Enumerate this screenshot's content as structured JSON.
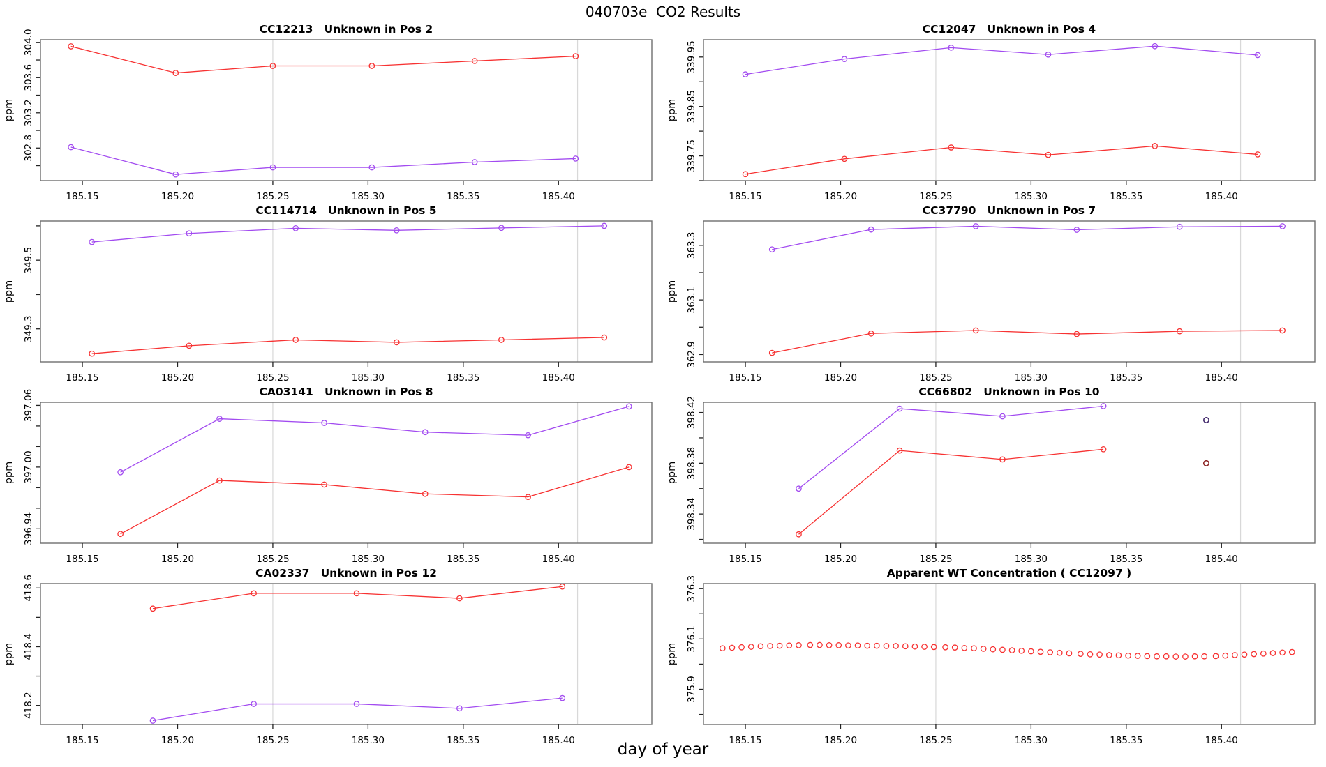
{
  "figure": {
    "title": "040703e  CO2 Results",
    "xlabel": "day of year"
  },
  "colors": {
    "red": "#F73232",
    "purple": "#A24BF0",
    "navy": "#41276B",
    "dark_red": "#8B2323",
    "gridline": "#D8D8D8",
    "box": "#6E6E6E",
    "tick": "#222222"
  },
  "axis": {
    "ylabel": "ppm",
    "xlim": [
      185.128,
      185.449
    ],
    "xticks": [
      185.15,
      185.2,
      185.25,
      185.3,
      185.35,
      185.4
    ],
    "xtick_labels": [
      "185.15",
      "185.20",
      "185.25",
      "185.30",
      "185.35",
      "185.40"
    ],
    "gridlines": [
      185.25,
      185.41
    ]
  },
  "chart_data": [
    {
      "id": "CC12213",
      "type": "line",
      "title": "CC12213   Unknown in Pos 2",
      "ylim": [
        302.43,
        304.03
      ],
      "yticks": [
        {
          "v": 302.8,
          "label": "302.8"
        },
        {
          "v": 303.2,
          "label": "303.2"
        },
        {
          "v": 303.6,
          "label": "303.6"
        },
        {
          "v": 304.0,
          "label": "304.0"
        }
      ],
      "yticks_minor": [
        302.6,
        303.0,
        303.4,
        303.8
      ],
      "series": [
        {
          "name": "red",
          "color": "red",
          "draw_line": true,
          "x": [
            185.144,
            185.199,
            185.25,
            185.302,
            185.356,
            185.409
          ],
          "y": [
            303.955,
            303.653,
            303.733,
            303.733,
            303.789,
            303.843
          ]
        },
        {
          "name": "purple",
          "color": "purple",
          "draw_line": true,
          "x": [
            185.144,
            185.199,
            185.25,
            185.302,
            185.356,
            185.409
          ],
          "y": [
            302.81,
            302.5,
            302.58,
            302.58,
            302.64,
            302.68
          ]
        }
      ]
    },
    {
      "id": "CC12047",
      "type": "line",
      "title": "CC12047   Unknown in Pos 4",
      "ylim": [
        339.7,
        339.985
      ],
      "yticks": [
        {
          "v": 339.75,
          "label": "339.75"
        },
        {
          "v": 339.85,
          "label": "339.85"
        },
        {
          "v": 339.95,
          "label": "339.95"
        }
      ],
      "yticks_minor": [
        339.7,
        339.8,
        339.9
      ],
      "series": [
        {
          "name": "red",
          "color": "red",
          "draw_line": true,
          "x": [
            185.15,
            185.202,
            185.258,
            185.309,
            185.365,
            185.419
          ],
          "y": [
            339.713,
            339.744,
            339.767,
            339.752,
            339.77,
            339.753
          ]
        },
        {
          "name": "purple",
          "color": "purple",
          "draw_line": true,
          "x": [
            185.15,
            185.202,
            185.258,
            185.309,
            185.365,
            185.419
          ],
          "y": [
            339.915,
            339.946,
            339.969,
            339.955,
            339.972,
            339.954
          ]
        }
      ]
    },
    {
      "id": "CC114714",
      "type": "line",
      "title": "CC114714   Unknown in Pos 5",
      "ylim": [
        349.204,
        349.614
      ],
      "yticks": [
        {
          "v": 349.3,
          "label": "349.3"
        },
        {
          "v": 349.5,
          "label": "349.5"
        }
      ],
      "yticks_minor": [
        349.4,
        349.6
      ],
      "series": [
        {
          "name": "red",
          "color": "red",
          "draw_line": true,
          "x": [
            185.155,
            185.206,
            185.262,
            185.315,
            185.37,
            185.424
          ],
          "y": [
            349.228,
            349.251,
            349.268,
            349.261,
            349.268,
            349.275
          ]
        },
        {
          "name": "purple",
          "color": "purple",
          "draw_line": true,
          "x": [
            185.155,
            185.206,
            185.262,
            185.315,
            185.37,
            185.424
          ],
          "y": [
            349.553,
            349.578,
            349.593,
            349.587,
            349.594,
            349.6
          ]
        }
      ]
    },
    {
      "id": "CC37790",
      "type": "line",
      "title": "CC37790   Unknown in Pos 7",
      "ylim": [
        362.873,
        363.389
      ],
      "yticks": [
        {
          "v": 362.9,
          "label": "362.9"
        },
        {
          "v": 363.1,
          "label": "363.1"
        },
        {
          "v": 363.3,
          "label": "363.3"
        }
      ],
      "yticks_minor": [
        363.0,
        363.2
      ],
      "series": [
        {
          "name": "red",
          "color": "red",
          "draw_line": true,
          "x": [
            185.164,
            185.216,
            185.271,
            185.324,
            185.378,
            185.432
          ],
          "y": [
            362.906,
            362.977,
            362.988,
            362.975,
            362.985,
            362.988
          ]
        },
        {
          "name": "purple",
          "color": "purple",
          "draw_line": true,
          "x": [
            185.164,
            185.216,
            185.271,
            185.324,
            185.378,
            185.432
          ],
          "y": [
            363.285,
            363.358,
            363.37,
            363.357,
            363.368,
            363.37
          ]
        }
      ]
    },
    {
      "id": "CA03141",
      "type": "line",
      "title": "CA03141   Unknown in Pos 8",
      "ylim": [
        396.926,
        397.063
      ],
      "yticks": [
        {
          "v": 396.94,
          "label": "396.94"
        },
        {
          "v": 397.0,
          "label": "397.00"
        },
        {
          "v": 397.06,
          "label": "397.06"
        }
      ],
      "yticks_minor": [
        396.96,
        396.98,
        397.02,
        397.04
      ],
      "series": [
        {
          "name": "red",
          "color": "red",
          "draw_line": true,
          "x": [
            185.17,
            185.222,
            185.277,
            185.33,
            185.384,
            185.437
          ],
          "y": [
            396.935,
            396.987,
            396.983,
            396.974,
            396.971,
            397.0
          ]
        },
        {
          "name": "purple",
          "color": "purple",
          "draw_line": true,
          "x": [
            185.17,
            185.222,
            185.277,
            185.33,
            185.384,
            185.437
          ],
          "y": [
            396.995,
            397.047,
            397.043,
            397.034,
            397.031,
            397.059
          ]
        }
      ]
    },
    {
      "id": "CC66802",
      "type": "line",
      "title": "CC66802   Unknown in Pos 10",
      "ylim": [
        398.317,
        398.428
      ],
      "yticks": [
        {
          "v": 398.34,
          "label": "398.34"
        },
        {
          "v": 398.38,
          "label": "398.38"
        },
        {
          "v": 398.42,
          "label": "398.42"
        }
      ],
      "yticks_minor": [
        398.32,
        398.36,
        398.4
      ],
      "series": [
        {
          "name": "red",
          "color": "red",
          "draw_line": true,
          "x": [
            185.178,
            185.231,
            185.285,
            185.338
          ],
          "y": [
            398.324,
            398.39,
            398.383,
            398.391
          ]
        },
        {
          "name": "purple",
          "color": "purple",
          "draw_line": true,
          "x": [
            185.178,
            185.231,
            185.285,
            185.338
          ],
          "y": [
            398.36,
            398.423,
            398.417,
            398.425
          ]
        }
      ],
      "extra_points": [
        {
          "name": "retained-navy",
          "color": "navy",
          "x": 185.392,
          "y": 398.414
        },
        {
          "name": "retained-darkred",
          "color": "dark_red",
          "x": 185.392,
          "y": 398.38
        }
      ]
    },
    {
      "id": "CA02337",
      "type": "line",
      "title": "CA02337   Unknown in Pos 12",
      "ylim": [
        418.135,
        418.615
      ],
      "yticks": [
        {
          "v": 418.2,
          "label": "418.2"
        },
        {
          "v": 418.4,
          "label": "418.4"
        },
        {
          "v": 418.6,
          "label": "418.6"
        }
      ],
      "yticks_minor": [
        418.3,
        418.5
      ],
      "series": [
        {
          "name": "red",
          "color": "red",
          "draw_line": true,
          "x": [
            185.187,
            185.24,
            185.294,
            185.348,
            185.402
          ],
          "y": [
            418.53,
            418.582,
            418.582,
            418.565,
            418.605
          ]
        },
        {
          "name": "purple",
          "color": "purple",
          "draw_line": true,
          "x": [
            185.187,
            185.24,
            185.294,
            185.348,
            185.402
          ],
          "y": [
            418.148,
            418.205,
            418.205,
            418.19,
            418.225
          ]
        }
      ]
    },
    {
      "id": "CC12097",
      "type": "scatter",
      "title": "Apparent WT Concentration ( CC12097 )",
      "ylim": [
        375.76,
        376.32
      ],
      "yticks": [
        {
          "v": 375.9,
          "label": "375.9"
        },
        {
          "v": 376.1,
          "label": "376.1"
        },
        {
          "v": 376.3,
          "label": "376.3"
        }
      ],
      "yticks_minor": [
        375.8,
        376.0,
        376.2
      ],
      "series": [
        {
          "name": "red",
          "color": "red",
          "draw_line": false,
          "x": [
            185.138,
            185.143,
            185.148,
            185.153,
            185.158,
            185.163,
            185.168,
            185.173,
            185.178,
            185.184,
            185.189,
            185.194,
            185.199,
            185.204,
            185.209,
            185.214,
            185.219,
            185.224,
            185.229,
            185.234,
            185.239,
            185.244,
            185.249,
            185.255,
            185.26,
            185.265,
            185.27,
            185.275,
            185.28,
            185.285,
            185.29,
            185.295,
            185.3,
            185.305,
            185.31,
            185.315,
            185.32,
            185.326,
            185.331,
            185.336,
            185.341,
            185.346,
            185.351,
            185.356,
            185.361,
            185.366,
            185.371,
            185.376,
            185.381,
            185.386,
            185.391,
            185.397,
            185.402,
            185.407,
            185.412,
            185.417,
            185.422,
            185.427,
            185.432,
            185.437
          ],
          "y": [
            376.063,
            376.065,
            376.067,
            376.069,
            376.071,
            376.072,
            376.073,
            376.074,
            376.075,
            376.076,
            376.076,
            376.075,
            376.075,
            376.074,
            376.074,
            376.073,
            376.073,
            376.072,
            376.072,
            376.071,
            376.07,
            376.069,
            376.068,
            376.067,
            376.066,
            376.064,
            376.063,
            376.061,
            376.059,
            376.057,
            376.055,
            376.053,
            376.051,
            376.049,
            376.047,
            376.045,
            376.043,
            376.041,
            376.039,
            376.038,
            376.036,
            376.035,
            376.034,
            376.033,
            376.032,
            376.031,
            376.031,
            376.03,
            376.03,
            376.031,
            376.031,
            376.032,
            376.034,
            376.036,
            376.038,
            376.04,
            376.042,
            376.044,
            376.046,
            376.048
          ]
        }
      ]
    }
  ]
}
